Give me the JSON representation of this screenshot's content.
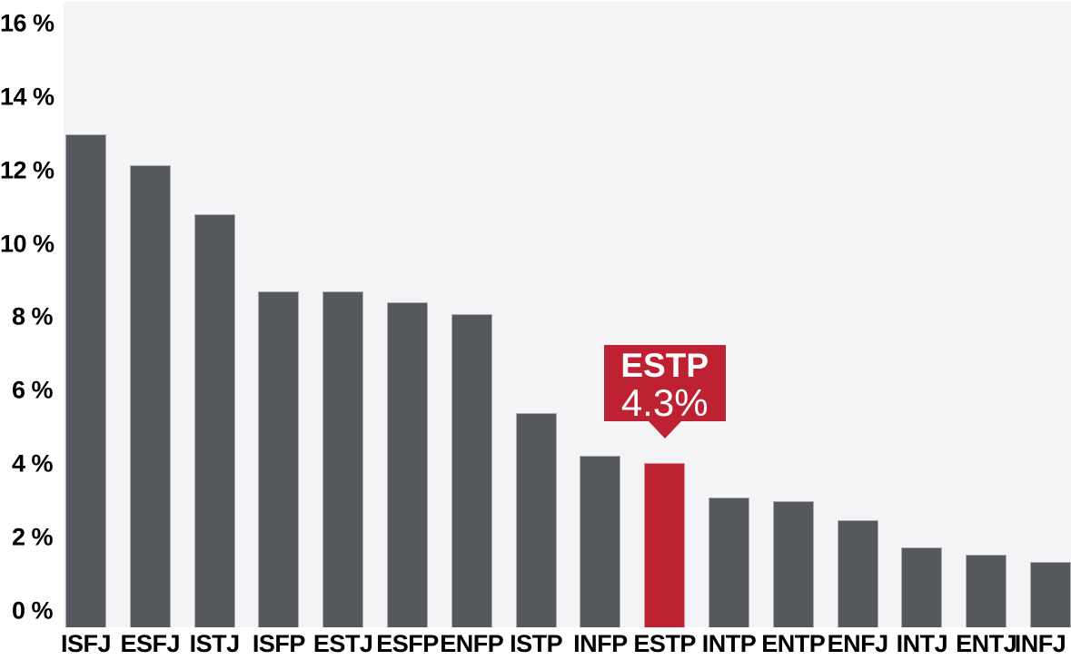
{
  "chart_data": {
    "type": "bar",
    "title": "",
    "categories": [
      "ISFJ",
      "ESFJ",
      "ISTJ",
      "ISFP",
      "ESTJ",
      "ESFP",
      "ENFP",
      "ISTP",
      "INFP",
      "ESTP",
      "INTP",
      "ENTP",
      "ENFJ",
      "INTJ",
      "ENTJ",
      "INFJ"
    ],
    "values": [
      12.9,
      12.1,
      10.8,
      8.8,
      8.8,
      8.5,
      8.2,
      5.6,
      4.5,
      4.3,
      3.4,
      3.3,
      2.8,
      2.1,
      1.9,
      1.7
    ],
    "highlight_index": 9,
    "y_ticks": [
      {
        "value": 0,
        "label": "0 %"
      },
      {
        "value": 2,
        "label": "2 %"
      },
      {
        "value": 4,
        "label": "4 %"
      },
      {
        "value": 6,
        "label": "6 %"
      },
      {
        "value": 8,
        "label": "8 %"
      },
      {
        "value": 10,
        "label": "10 %"
      },
      {
        "value": 12,
        "label": "12 %"
      },
      {
        "value": 14,
        "label": "14 %"
      },
      {
        "value": 16,
        "label": "16 %"
      }
    ],
    "ylim": [
      0,
      16.4
    ],
    "grid": false,
    "legend": false,
    "colors": {
      "bar": "#55585c",
      "highlight": "#be2132",
      "plot_bg": "#f4f4f6",
      "axis_text": "#000000",
      "tooltip_bg": "#be2132",
      "tooltip_text": "#ffffff"
    }
  },
  "tooltip": {
    "title": "ESTP",
    "value": "4.3%"
  }
}
